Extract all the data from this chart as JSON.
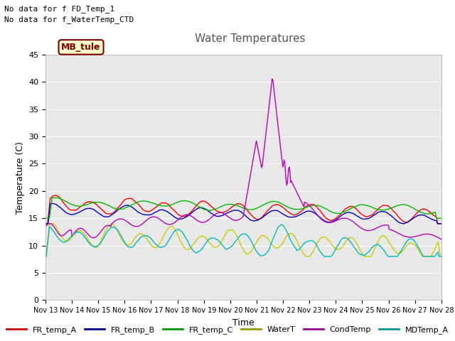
{
  "title": "Water Temperatures",
  "xlabel": "Time",
  "ylabel": "Temperature (C)",
  "ylim": [
    0,
    45
  ],
  "yticks": [
    0,
    5,
    10,
    15,
    20,
    25,
    30,
    35,
    40,
    45
  ],
  "xtick_labels": [
    "Nov 13",
    "Nov 14",
    "Nov 15",
    "Nov 16",
    "Nov 17",
    "Nov 18",
    "Nov 19",
    "Nov 20",
    "Nov 21",
    "Nov 22",
    "Nov 23",
    "Nov 24",
    "Nov 25",
    "Nov 26",
    "Nov 27",
    "Nov 28"
  ],
  "annotations": [
    "No data for f FD_Temp_1",
    "No data for f_WaterTemp_CTD"
  ],
  "legend_box_label": "MB_tule",
  "legend_box_color": "#ffffcc",
  "legend_box_border": "#800000",
  "series": {
    "FR_temp_A": {
      "color": "#ff0000",
      "lw": 1.0
    },
    "FR_temp_B": {
      "color": "#0000cc",
      "lw": 1.0
    },
    "FR_temp_C": {
      "color": "#00bb00",
      "lw": 1.0
    },
    "WaterT": {
      "color": "#cccc00",
      "lw": 1.0
    },
    "CondTemp": {
      "color": "#bb00bb",
      "lw": 1.0
    },
    "MDTemp_A": {
      "color": "#00bbbb",
      "lw": 1.0
    }
  },
  "legend_colors": {
    "FR_temp_A": "#cc0000",
    "FR_temp_B": "#000099",
    "FR_temp_C": "#009900",
    "WaterT": "#999900",
    "CondTemp": "#990099",
    "MDTemp_A": "#009999"
  },
  "bg_color": "#e8e8e8",
  "fig_bg": "#ffffff",
  "grid_color": "#ffffff",
  "title_color": "#555555",
  "font_family": "DejaVu Sans"
}
